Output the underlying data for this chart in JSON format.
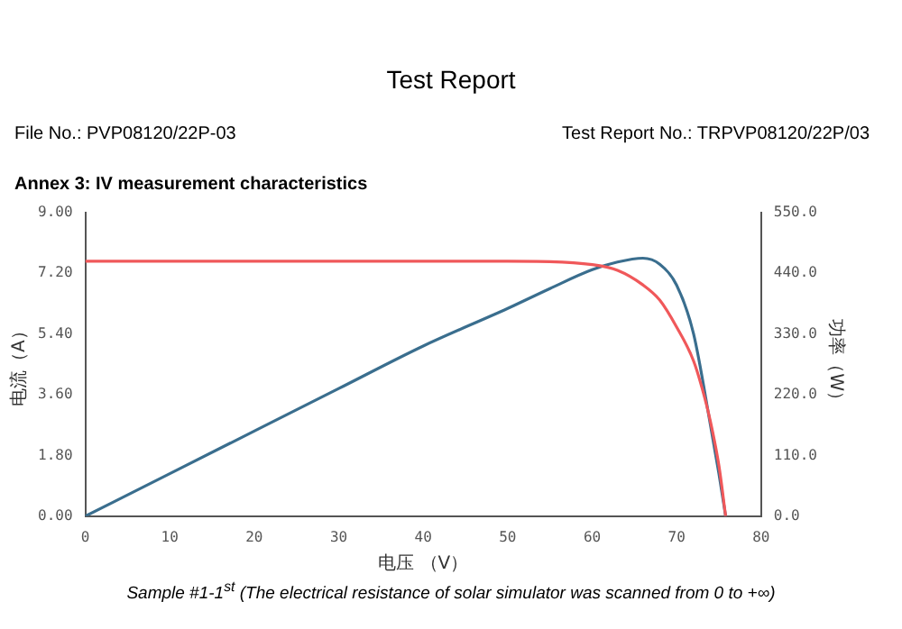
{
  "chart_data": {
    "type": "line",
    "title": "Test Report",
    "xlabel": "电压 （V）",
    "ylabel": "电流（A）",
    "y2label": "功率（W）",
    "annotations": [
      "File No.: PVP08120/22P-03",
      "Test Report No.: TRPVP08120/22P/03",
      "Annex 3: IV measurement characteristics",
      "Sample #1-1$^{st}$  (The electrical resistance of solar simulator was scanned from 0 to +∞)"
    ],
    "series": [
      {
        "color": "#f0585a",
        "axis": "y",
        "x": [
          0,
          10,
          20,
          30,
          40,
          50,
          55,
          60,
          63,
          66,
          68,
          70,
          72,
          73,
          74,
          75,
          75.8
        ],
        "values": [
          7.55,
          7.55,
          7.55,
          7.55,
          7.55,
          7.55,
          7.54,
          7.45,
          7.28,
          6.85,
          6.4,
          5.6,
          4.6,
          3.8,
          2.8,
          1.5,
          0
        ]
      },
      {
        "color": "#3a6e8e",
        "axis": "y2",
        "x": [
          0,
          10,
          20,
          30,
          40,
          50,
          55,
          60,
          63,
          66,
          68,
          70,
          72,
          74,
          75,
          75.8
        ],
        "values": [
          0,
          77,
          154,
          231,
          308,
          376,
          412,
          446,
          460,
          467,
          456,
          418,
          330,
          165,
          77,
          0
        ]
      }
    ],
    "xlim": [
      0,
      80
    ],
    "xticks": [
      0,
      10,
      20,
      30,
      40,
      50,
      60,
      70,
      80
    ],
    "ylim": [
      0,
      9
    ],
    "yticks": [
      {
        "value": 0,
        "label": "0.00"
      },
      {
        "value": 1.8,
        "label": "1.80"
      },
      {
        "value": 3.6,
        "label": "3.60"
      },
      {
        "value": 5.4,
        "label": "5.40"
      },
      {
        "value": 7.2,
        "label": "7.20"
      },
      {
        "value": 9,
        "label": "9.00"
      }
    ],
    "y2lim": [
      0,
      550
    ],
    "y2ticks": [
      {
        "value": 0,
        "label": "0.0"
      },
      {
        "value": 110,
        "label": "110.0"
      },
      {
        "value": 220,
        "label": "220.0"
      },
      {
        "value": 330,
        "label": "330.0"
      },
      {
        "value": 440,
        "label": "440.0"
      },
      {
        "value": 550,
        "label": "550.0"
      }
    ],
    "grid": false,
    "legend": false,
    "marker": "none",
    "line_style": "solid"
  }
}
